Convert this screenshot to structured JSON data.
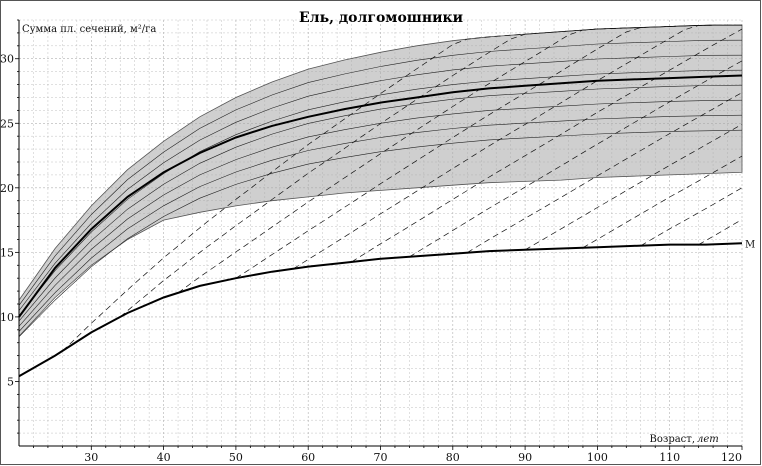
{
  "chart_data": {
    "type": "line",
    "title": "Ель, долгомошники",
    "ylabel": "Сумма пл. сечений, м²/га",
    "xlabel_prefix": "Возраст,",
    "xlabel_unit": "лет",
    "xlim": [
      20,
      120
    ],
    "ylim": [
      0,
      33
    ],
    "x_ticks": [
      30,
      40,
      50,
      60,
      70,
      80,
      90,
      100,
      110,
      120
    ],
    "y_ticks": [
      5,
      10,
      15,
      20,
      25,
      30
    ],
    "grid": true,
    "colors": {
      "band": "#9a9a9a",
      "curve": "#000000",
      "grid": "#b0b0b0"
    },
    "band": {
      "x": [
        20,
        25,
        30,
        35,
        40,
        45,
        50,
        55,
        60,
        65,
        70,
        75,
        80,
        85,
        90,
        95,
        100,
        105,
        110,
        115,
        120
      ],
      "upper": [
        11.3,
        15.3,
        18.6,
        21.4,
        23.6,
        25.5,
        27.0,
        28.2,
        29.2,
        29.9,
        30.5,
        31.0,
        31.4,
        31.7,
        31.9,
        32.1,
        32.3,
        32.4,
        32.5,
        32.6,
        32.6
      ],
      "lower": [
        8.5,
        11.5,
        14.0,
        16.0,
        17.5,
        18.1,
        18.6,
        19.0,
        19.3,
        19.6,
        19.8,
        20.0,
        20.2,
        20.4,
        20.5,
        20.6,
        20.8,
        20.9,
        21.0,
        21.1,
        21.2
      ]
    },
    "series": [
      {
        "name": "M",
        "x": [
          20,
          25,
          30,
          35,
          40,
          45,
          50,
          55,
          60,
          65,
          70,
          75,
          80,
          85,
          90,
          95,
          100,
          105,
          110,
          115,
          120
        ],
        "values": [
          5.4,
          7.0,
          8.8,
          10.3,
          11.5,
          12.4,
          13.0,
          13.5,
          13.9,
          14.2,
          14.5,
          14.7,
          14.9,
          15.1,
          15.2,
          15.3,
          15.4,
          15.5,
          15.6,
          15.6,
          15.7
        ]
      },
      {
        "name": "",
        "x": [
          20,
          25,
          30,
          35,
          40,
          45,
          50,
          55,
          60,
          65,
          70,
          75,
          80,
          85,
          90,
          95,
          100,
          105,
          110,
          115,
          120
        ],
        "values": [
          10.0,
          13.8,
          16.8,
          19.3,
          21.2,
          22.7,
          23.9,
          24.8,
          25.5,
          26.1,
          26.6,
          27.0,
          27.4,
          27.7,
          27.9,
          28.1,
          28.3,
          28.4,
          28.5,
          28.6,
          28.7
        ]
      }
    ],
    "dashed_count": 13,
    "dashed_x_spacing": 8,
    "thin_line_count": 7
  }
}
